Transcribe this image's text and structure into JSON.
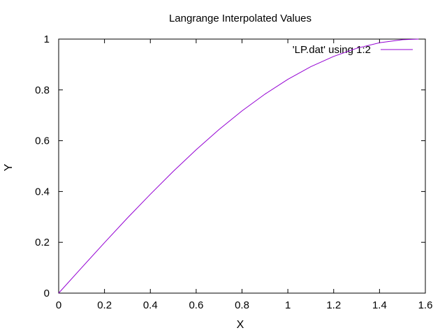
{
  "chart_data": {
    "type": "line",
    "title": "Langrange Interpolated Values",
    "xlabel": "X",
    "ylabel": "Y",
    "xlim": [
      0,
      1.6
    ],
    "ylim": [
      0,
      1
    ],
    "xticks": [
      "0",
      "0.2",
      "0.4",
      "0.6",
      "0.8",
      "1",
      "1.2",
      "1.4",
      "1.6"
    ],
    "yticks": [
      "0",
      "0.2",
      "0.4",
      "0.6",
      "0.8",
      "1"
    ],
    "grid": false,
    "legend_position": "top-right",
    "series": [
      {
        "name": "'LP.dat' using 1:2",
        "color": "#9400d3",
        "x": [
          0,
          0.1,
          0.2,
          0.3,
          0.4,
          0.5,
          0.6,
          0.7,
          0.8,
          0.9,
          1.0,
          1.1,
          1.2,
          1.3,
          1.4,
          1.5,
          1.5708
        ],
        "y": [
          0,
          0.0998,
          0.1987,
          0.2955,
          0.3894,
          0.4794,
          0.5646,
          0.6442,
          0.7174,
          0.7833,
          0.8415,
          0.8912,
          0.932,
          0.9636,
          0.9854,
          0.9975,
          1.0
        ]
      }
    ]
  }
}
